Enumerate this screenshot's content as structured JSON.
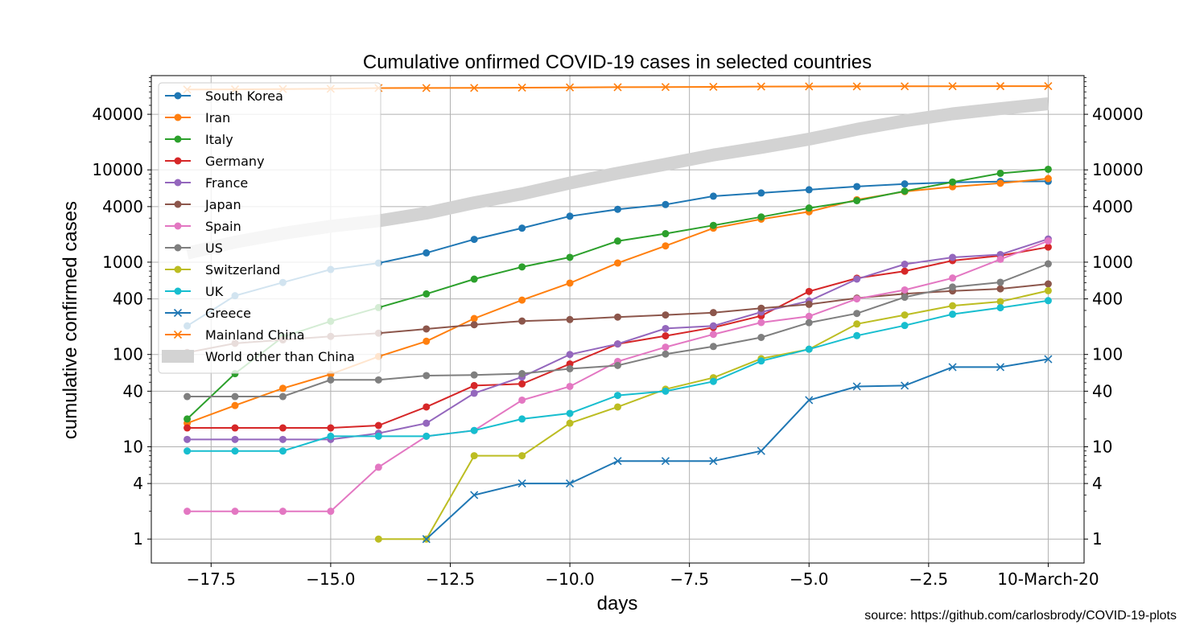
{
  "chart_data": {
    "type": "line",
    "title": "Cumulative onfirmed COVID-19 cases in selected countries",
    "xlabel": "days",
    "ylabel": "cumulative confirmed cases",
    "yscale": "log",
    "xlim": [
      -18.75,
      0.75
    ],
    "ylim": [
      0.55,
      105000
    ],
    "x_ticks": [
      -17.5,
      -15.0,
      -12.5,
      -10.0,
      -7.5,
      -5.0,
      -2.5
    ],
    "x_tick_labels": [
      "−17.5",
      "−15.0",
      "−12.5",
      "−10.0",
      "−7.5",
      "−5.0",
      "−2.5"
    ],
    "x_end_label": "10-March-20",
    "y_ticks": [
      1,
      4,
      10,
      40,
      100,
      400,
      1000,
      4000,
      10000,
      40000
    ],
    "y_tick_labels": [
      "1",
      "4",
      "10",
      "40",
      "100",
      "400",
      "1000",
      "4000",
      "10000",
      "40000"
    ],
    "grid": true,
    "legend_position": "top-left",
    "source_text": "source: https://github.com/carlosbrody/COVID-19-plots",
    "series": [
      {
        "name": "South Korea",
        "color": "#1f77b4",
        "marker": "o",
        "x": [
          -18,
          -17,
          -16,
          -15,
          -14,
          -13,
          -12,
          -11,
          -10,
          -9,
          -8,
          -7,
          -6,
          -5,
          -4,
          -3,
          -2,
          -1,
          0
        ],
        "y": [
          204,
          433,
          602,
          833,
          977,
          1261,
          1766,
          2337,
          3150,
          3736,
          4212,
          5186,
          5621,
          6088,
          6593,
          7041,
          7313,
          7478,
          7513
        ]
      },
      {
        "name": "Iran",
        "color": "#ff7f0e",
        "marker": "o",
        "x": [
          -18,
          -17,
          -16,
          -15,
          -14,
          -13,
          -12,
          -11,
          -10,
          -9,
          -8,
          -7,
          -6,
          -5,
          -4,
          -3,
          -2,
          -1,
          0
        ],
        "y": [
          18,
          28,
          43,
          61,
          95,
          139,
          245,
          388,
          593,
          978,
          1501,
          2336,
          2922,
          3513,
          4747,
          5823,
          6566,
          7161,
          8042
        ]
      },
      {
        "name": "Italy",
        "color": "#2ca02c",
        "marker": "o",
        "x": [
          -18,
          -17,
          -16,
          -15,
          -14,
          -13,
          -12,
          -11,
          -10,
          -9,
          -8,
          -7,
          -6,
          -5,
          -4,
          -3,
          -2,
          -1,
          0
        ],
        "y": [
          20,
          62,
          155,
          229,
          322,
          453,
          655,
          888,
          1128,
          1694,
          2036,
          2502,
          3089,
          3858,
          4636,
          5883,
          7375,
          9172,
          10149
        ]
      },
      {
        "name": "Germany",
        "color": "#d62728",
        "marker": "o",
        "x": [
          -18,
          -17,
          -16,
          -15,
          -14,
          -13,
          -12,
          -11,
          -10,
          -9,
          -8,
          -7,
          -6,
          -5,
          -4,
          -3,
          -2,
          -1,
          0
        ],
        "y": [
          16,
          16,
          16,
          16,
          17,
          27,
          46,
          48,
          79,
          130,
          159,
          196,
          262,
          482,
          670,
          799,
          1040,
          1176,
          1457
        ]
      },
      {
        "name": "France",
        "color": "#9467bd",
        "marker": "o",
        "x": [
          -18,
          -17,
          -16,
          -15,
          -14,
          -13,
          -12,
          -11,
          -10,
          -9,
          -8,
          -7,
          -6,
          -5,
          -4,
          -3,
          -2,
          -1,
          0
        ],
        "y": [
          12,
          12,
          12,
          12,
          14,
          18,
          38,
          57,
          100,
          130,
          191,
          204,
          288,
          380,
          656,
          949,
          1126,
          1209,
          1784
        ]
      },
      {
        "name": "Japan",
        "color": "#8c564b",
        "marker": "o",
        "x": [
          -18,
          -17,
          -16,
          -15,
          -14,
          -13,
          -12,
          -11,
          -10,
          -9,
          -8,
          -7,
          -6,
          -5,
          -4,
          -3,
          -2,
          -1,
          0
        ],
        "y": [
          105,
          132,
          144,
          157,
          170,
          189,
          210,
          230,
          239,
          254,
          268,
          284,
          317,
          349,
          408,
          455,
          488,
          514,
          581
        ]
      },
      {
        "name": "Spain",
        "color": "#e377c2",
        "marker": "o",
        "x": [
          -18,
          -17,
          -16,
          -15,
          -14,
          -13,
          -12,
          -11,
          -10,
          -9,
          -8,
          -7,
          -6,
          -5,
          -4,
          -3,
          -2,
          -1,
          0
        ],
        "y": [
          2,
          2,
          2,
          2,
          6,
          13,
          15,
          32,
          45,
          84,
          120,
          165,
          222,
          259,
          400,
          500,
          673,
          1073,
          1695
        ]
      },
      {
        "name": "US",
        "color": "#7f7f7f",
        "marker": "o",
        "x": [
          -18,
          -17,
          -16,
          -15,
          -14,
          -13,
          -12,
          -11,
          -10,
          -9,
          -8,
          -7,
          -6,
          -5,
          -4,
          -3,
          -2,
          -1,
          0
        ],
        "y": [
          35,
          35,
          35,
          53,
          53,
          59,
          60,
          62,
          70,
          76,
          101,
          122,
          153,
          221,
          278,
          417,
          537,
          605,
          959
        ]
      },
      {
        "name": "Switzerland",
        "color": "#bcbd22",
        "marker": "o",
        "x": [
          -14,
          -13,
          -12,
          -11,
          -10,
          -9,
          -8,
          -7,
          -6,
          -5,
          -4,
          -3,
          -2,
          -1,
          0
        ],
        "y": [
          1,
          1,
          8,
          8,
          18,
          27,
          42,
          56,
          90,
          114,
          214,
          268,
          337,
          374,
          491
        ]
      },
      {
        "name": "UK",
        "color": "#17becf",
        "marker": "o",
        "x": [
          -18,
          -17,
          -16,
          -15,
          -14,
          -13,
          -12,
          -11,
          -10,
          -9,
          -8,
          -7,
          -6,
          -5,
          -4,
          -3,
          -2,
          -1,
          0
        ],
        "y": [
          9,
          9,
          9,
          13,
          13,
          13,
          15,
          20,
          23,
          36,
          40,
          51,
          85,
          114,
          160,
          206,
          273,
          321,
          383
        ]
      },
      {
        "name": "Greece",
        "color": "#1f77b4",
        "marker": "x",
        "x": [
          -13,
          -12,
          -11,
          -10,
          -9,
          -8,
          -7,
          -6,
          -5,
          -4,
          -3,
          -2,
          -1,
          0
        ],
        "y": [
          1,
          3,
          4,
          4,
          7,
          7,
          7,
          9,
          32,
          45,
          46,
          73,
          73,
          89
        ]
      },
      {
        "name": "Mainland China",
        "color": "#ff7f0e",
        "marker": "x",
        "x": [
          -18,
          -17,
          -16,
          -15,
          -14,
          -13,
          -12,
          -11,
          -10,
          -9,
          -8,
          -7,
          -6,
          -5,
          -4,
          -3,
          -2,
          -1,
          0
        ],
        "y": [
          74185,
          74576,
          75077,
          75550,
          77001,
          77022,
          77241,
          77754,
          78166,
          78600,
          78928,
          79356,
          79932,
          80136,
          80261,
          80386,
          80537,
          80690,
          80770
        ]
      },
      {
        "name": "World other than China",
        "color": "#d3d3d3",
        "marker": "none",
        "x": [
          -18,
          -17,
          -16,
          -15,
          -14,
          -13,
          -12,
          -11,
          -10,
          -9,
          -8,
          -7,
          -6,
          -5,
          -4,
          -3,
          -2,
          -1,
          0
        ],
        "y": [
          1250,
          1650,
          2050,
          2450,
          2800,
          3400,
          4400,
          5500,
          7200,
          9200,
          11500,
          14500,
          17500,
          21500,
          27500,
          34000,
          40500,
          46000,
          52000
        ]
      }
    ]
  }
}
